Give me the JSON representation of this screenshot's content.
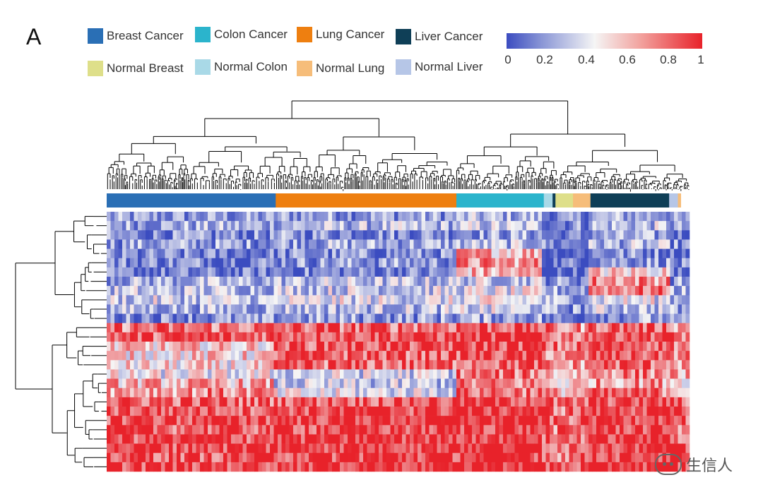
{
  "figure": {
    "panel_label": "A",
    "watermark": "生信人"
  },
  "chart_data": {
    "type": "heatmap",
    "title": "",
    "legend": {
      "placement": "top-left",
      "items": [
        {
          "label": "Breast Cancer",
          "color": "#2a6fb5"
        },
        {
          "label": "Colon Cancer",
          "color": "#2bb4cc"
        },
        {
          "label": "Lung Cancer",
          "color": "#ee7f10"
        },
        {
          "label": "Liver Cancer",
          "color": "#0f3f57"
        },
        {
          "label": "Normal Breast",
          "color": "#dedf8a"
        },
        {
          "label": "Normal Colon",
          "color": "#a9d9e7"
        },
        {
          "label": "Normal Lung",
          "color": "#f6bd7a"
        },
        {
          "label": "Normal Liver",
          "color": "#b6c6e7"
        }
      ]
    },
    "colorbar": {
      "range": [
        0,
        1
      ],
      "ticks": [
        "0",
        "0.2",
        "0.4",
        "0.6",
        "0.8",
        "1"
      ],
      "colors": [
        "#3b4cc0",
        "#f5f5f5",
        "#e8222a"
      ]
    },
    "sample_groups": [
      {
        "group": "Breast Cancer",
        "fraction": 0.29
      },
      {
        "group": "Lung Cancer",
        "fraction": 0.31
      },
      {
        "group": "Colon Cancer",
        "fraction": 0.15
      },
      {
        "group": "Normal Colon",
        "fraction": 0.015
      },
      {
        "group": "Liver Cancer",
        "fraction": 0.005
      },
      {
        "group": "Normal Breast",
        "fraction": 0.03
      },
      {
        "group": "Normal Lung",
        "fraction": 0.03
      },
      {
        "group": "Liver Cancer",
        "fraction": 0.135
      },
      {
        "group": "Normal Liver",
        "fraction": 0.015
      },
      {
        "group": "Normal Lung",
        "fraction": 0.005
      }
    ],
    "row_means": [
      0.22,
      0.28,
      0.18,
      0.25,
      0.15,
      0.2,
      0.12,
      0.3,
      0.35,
      0.38,
      0.3,
      0.2,
      0.8,
      0.88,
      0.85,
      0.82,
      0.78,
      0.72,
      0.66,
      0.75,
      0.86,
      0.9,
      0.93,
      0.88,
      0.92,
      0.94,
      0.9,
      0.95
    ],
    "rows": 28,
    "columns": 150,
    "grid": false
  }
}
